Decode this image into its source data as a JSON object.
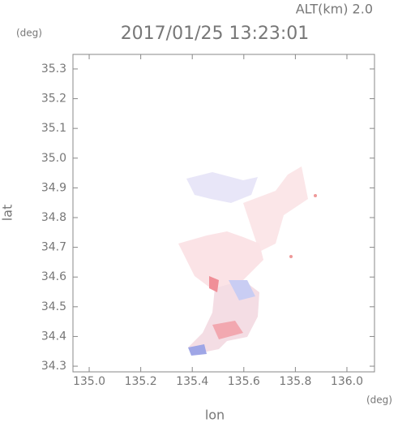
{
  "chart_data": {
    "type": "map",
    "title": "2017/01/25 13:23:01",
    "annotation": "ALT(km) 2.0",
    "x_label": "lon",
    "y_label": "lat",
    "x_unit": "(deg)",
    "y_unit": "(deg)",
    "xlim": [
      134.937,
      136.107
    ],
    "ylim": [
      34.281,
      35.349
    ],
    "xticks": [
      {
        "value": 135,
        "label": "135.0"
      },
      135.2,
      135.4,
      135.6,
      135.8,
      {
        "value": 136,
        "label": "136.0"
      }
    ],
    "yticks": [
      34.3,
      34.4,
      34.5,
      34.6,
      34.7,
      34.8,
      34.9,
      {
        "value": 35,
        "label": "35.0"
      },
      35.1,
      35.2,
      35.3
    ]
  }
}
